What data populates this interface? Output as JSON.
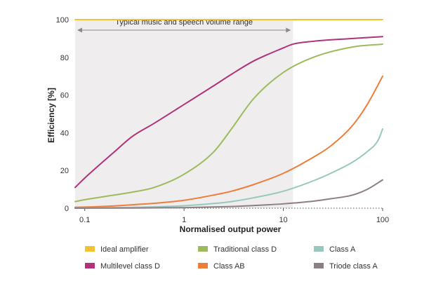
{
  "chart_data": {
    "type": "line",
    "xscale": "log",
    "xlim": [
      0.08,
      100
    ],
    "ylim": [
      0,
      100
    ],
    "xticks": [
      0.1,
      1,
      10,
      100
    ],
    "xtick_labels": [
      "0.1",
      "1",
      "10",
      "100"
    ],
    "yticks": [
      0,
      20,
      40,
      60,
      80,
      100
    ],
    "ytick_labels": [
      "0",
      "20",
      "40",
      "60",
      "80",
      "100"
    ],
    "xlabel": "Normalised output power",
    "ylabel": "Efficiency [%]",
    "annotation": {
      "text": "Typical music and speech volume range",
      "x_range": [
        0.08,
        12.5
      ]
    },
    "legend_position": "bottom",
    "series": [
      {
        "name": "Ideal amplifier",
        "color": "#f2c230",
        "x": [
          0.08,
          100
        ],
        "y": [
          100,
          100
        ]
      },
      {
        "name": "Multilevel class D",
        "color": "#b0327b",
        "x": [
          0.08,
          0.1,
          0.2,
          0.3,
          0.5,
          1,
          2,
          3,
          5,
          10,
          12.5,
          20,
          50,
          100
        ],
        "y": [
          11,
          16,
          30,
          38,
          45,
          55,
          65,
          71,
          78,
          85,
          87,
          88.5,
          90,
          91
        ]
      },
      {
        "name": "Traditional class D",
        "color": "#9cbb5c",
        "x": [
          0.08,
          0.1,
          0.2,
          0.3,
          0.5,
          1,
          2,
          3,
          5,
          10,
          20,
          50,
          100
        ],
        "y": [
          3.5,
          4.5,
          7,
          8.5,
          11,
          18,
          30,
          42,
          58,
          72,
          80,
          85.5,
          87
        ]
      },
      {
        "name": "Class AB",
        "color": "#ef7d3a",
        "x": [
          0.08,
          0.1,
          0.2,
          0.3,
          0.5,
          1,
          2,
          3,
          5,
          10,
          20,
          30,
          50,
          70,
          100
        ],
        "y": [
          0.5,
          0.6,
          1.2,
          1.8,
          2.6,
          4.2,
          7,
          9,
          12.5,
          18.5,
          27,
          33,
          44,
          55,
          70
        ]
      },
      {
        "name": "Class A",
        "color": "#96c8bf",
        "x": [
          0.08,
          0.1,
          0.3,
          0.5,
          1,
          2,
          3,
          5,
          10,
          20,
          30,
          50,
          70,
          90,
          100
        ],
        "y": [
          0,
          0.1,
          0.4,
          0.7,
          1.3,
          2.5,
          3.5,
          5.5,
          9,
          14.5,
          18.5,
          24.5,
          30,
          36,
          42
        ]
      },
      {
        "name": "Triode class A",
        "color": "#8c7f84",
        "x": [
          0.08,
          0.3,
          1,
          3,
          5,
          10,
          20,
          30,
          50,
          70,
          100
        ],
        "y": [
          0,
          0.1,
          0.3,
          0.9,
          1.4,
          2.3,
          3.7,
          5,
          7,
          10,
          15
        ]
      }
    ]
  }
}
